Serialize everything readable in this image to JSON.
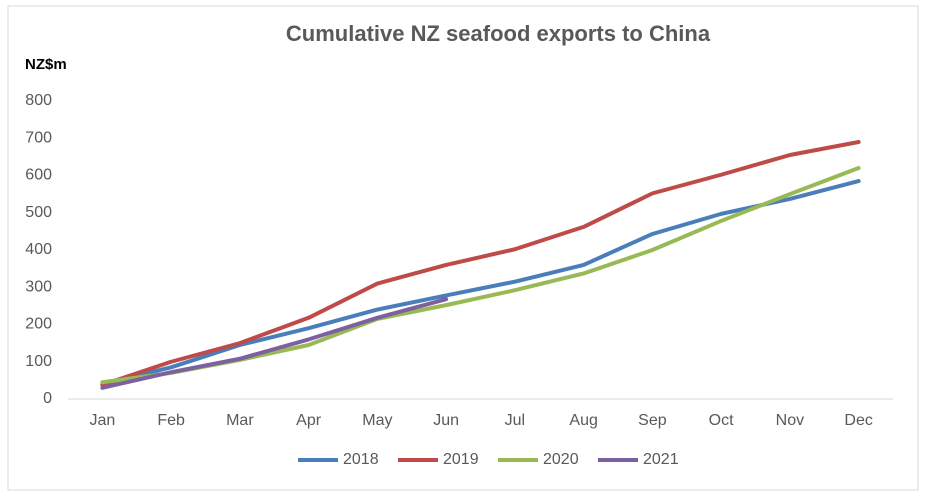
{
  "chart_data": {
    "type": "line",
    "title": "Cumulative NZ seafood exports to China",
    "y_label": "NZ$m",
    "categories": [
      "Jan",
      "Feb",
      "Mar",
      "Apr",
      "May",
      "Jun",
      "Jul",
      "Aug",
      "Sep",
      "Oct",
      "Nov",
      "Dec"
    ],
    "series": [
      {
        "name": "2018",
        "color": "#4a7ebb",
        "values": [
          40,
          85,
          145,
          190,
          240,
          278,
          315,
          360,
          443,
          497,
          537,
          585
        ]
      },
      {
        "name": "2019",
        "color": "#be4b48",
        "values": [
          38,
          100,
          150,
          218,
          310,
          360,
          402,
          462,
          552,
          602,
          655,
          690
        ]
      },
      {
        "name": "2020",
        "color": "#98b954",
        "values": [
          45,
          70,
          105,
          145,
          215,
          252,
          292,
          337,
          400,
          478,
          550,
          620
        ]
      },
      {
        "name": "2021",
        "color": "#7d60a0",
        "values": [
          30,
          72,
          108,
          160,
          218,
          268,
          null,
          null,
          null,
          null,
          null,
          null
        ]
      }
    ],
    "ylim": [
      0,
      800
    ],
    "yticks": [
      0,
      100,
      200,
      300,
      400,
      500,
      600,
      700,
      800
    ],
    "grid": false,
    "legend": "bottom"
  }
}
